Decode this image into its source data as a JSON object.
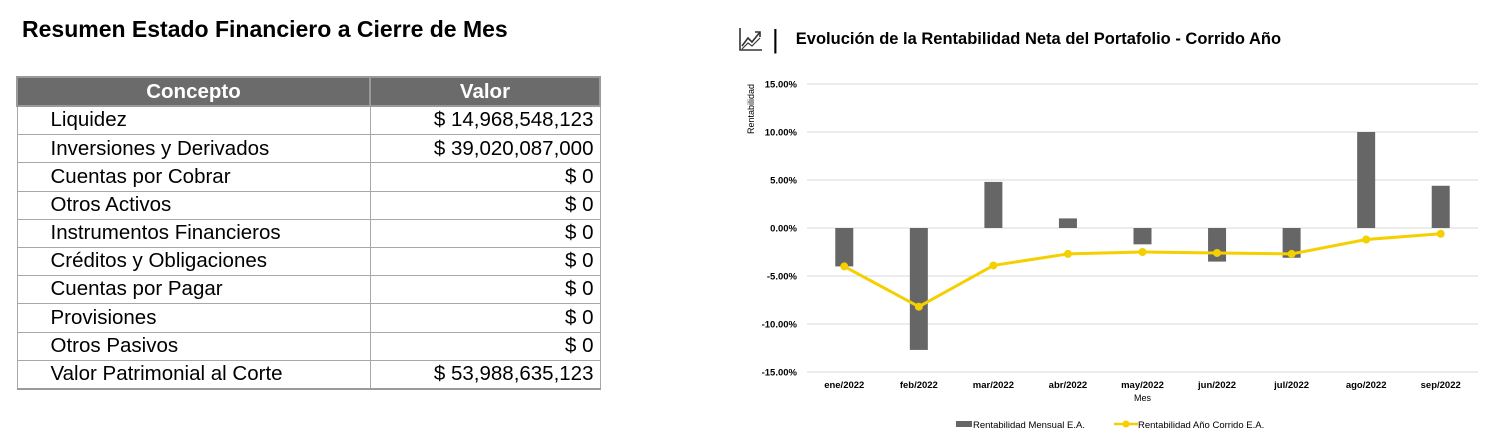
{
  "left": {
    "title": "Resumen Estado Financiero a Cierre de Mes",
    "columns": [
      "Concepto",
      "Valor"
    ],
    "rows": [
      {
        "concept": "Liquidez",
        "value": "$ 14,968,548,123"
      },
      {
        "concept": "Inversiones y Derivados",
        "value": "$ 39,020,087,000"
      },
      {
        "concept": "Cuentas por Cobrar",
        "value": "$ 0"
      },
      {
        "concept": "Otros Activos",
        "value": "$ 0"
      },
      {
        "concept": "Instrumentos Financieros",
        "value": "$ 0"
      },
      {
        "concept": "Créditos y Obligaciones",
        "value": "$ 0"
      },
      {
        "concept": "Cuentas por Pagar",
        "value": "$ 0"
      },
      {
        "concept": "Provisiones",
        "value": "$ 0"
      },
      {
        "concept": "Otros Pasivos",
        "value": "$ 0"
      },
      {
        "concept": "Valor Patrimonial al Corte",
        "value": "$ 53,988,635,123"
      }
    ]
  },
  "chart_header": {
    "icon": "trend-chart-icon",
    "title": "Evolución de la Rentabilidad Neta del Portafolio - Corrido Año"
  },
  "chart_data": {
    "type": "bar",
    "title": "Evolución de la Rentabilidad Neta del Portafolio - Corrido Año",
    "xlabel": "Mes",
    "ylabel": "Rentabilidad",
    "ylim": [
      -15,
      15
    ],
    "yticks": [
      "15.00%",
      "10.00%",
      "5.00%",
      "0.00%",
      "-5.00%",
      "-10.00%",
      "-15.00%"
    ],
    "ytick_values": [
      15,
      10,
      5,
      0,
      -5,
      -10,
      -15
    ],
    "categories": [
      "ene/2022",
      "feb/2022",
      "mar/2022",
      "abr/2022",
      "may/2022",
      "jun/2022",
      "jul/2022",
      "ago/2022",
      "sep/2022"
    ],
    "grid": true,
    "legend_position": "bottom",
    "series": [
      {
        "name": "Rentabilidad Mensual E.A.",
        "type": "bar",
        "color": "#666666",
        "values": [
          -4.0,
          -12.7,
          4.8,
          1.0,
          -1.7,
          -3.5,
          -3.1,
          10.0,
          4.4
        ]
      },
      {
        "name": "Rentabilidad Año Corrido E.A.",
        "type": "line",
        "color": "#f5d000",
        "values": [
          -4.0,
          -8.2,
          -3.9,
          -2.7,
          -2.5,
          -2.6,
          -2.7,
          -1.2,
          -0.6
        ]
      }
    ]
  }
}
